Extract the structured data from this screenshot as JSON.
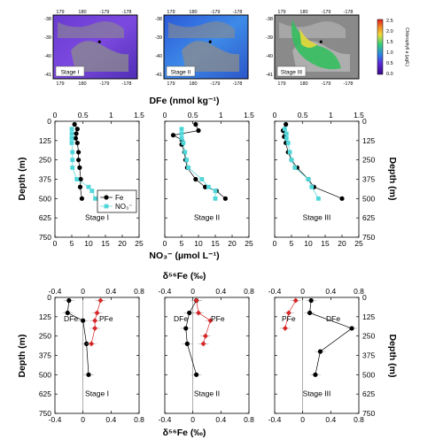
{
  "figure": {
    "map_lat_labels": [
      "-38",
      "-39",
      "-40",
      "-41"
    ],
    "map_lon_labels": [
      "179",
      "180",
      "-179",
      "-178"
    ],
    "colorbar_title": "Chlorophyll a (µg/L)",
    "colorbar_ticks": [
      "2.5",
      "2.0",
      "1.5",
      "1.0",
      "0.5",
      "0.0"
    ],
    "map_panels": [
      {
        "label": "Stage I"
      },
      {
        "label": "Stage II"
      },
      {
        "label": "Stage III"
      }
    ],
    "middle_top_title": "DFe (nmol kg⁻¹)",
    "middle_bottom_title": "NO₃⁻ (µmol L⁻¹)",
    "depth_label": "Depth (m)",
    "delta_title": "δ⁵⁶Fe (‰)"
  },
  "chart_data": [
    {
      "type": "scatter",
      "panel": "middle",
      "axes": [
        {
          "stage": "Stage I",
          "x_top": {
            "range": [
              0,
              1.5
            ],
            "ticks": [
              "0",
              "0.5",
              "1",
              "1.5"
            ]
          },
          "x_bottom": {
            "range": [
              0,
              25
            ],
            "ticks": [
              "0",
              "5",
              "10",
              "15",
              "20",
              "25"
            ]
          },
          "y": {
            "range": [
              0,
              750
            ],
            "reversed": true,
            "ticks": [
              "0",
              "125",
              "250",
              "375",
              "500",
              "625",
              "750"
            ]
          },
          "series": [
            {
              "name": "Fe",
              "x_axis": "top",
              "points": [
                [
                  0.35,
                  20
                ],
                [
                  0.4,
                  50
                ],
                [
                  0.38,
                  80
                ],
                [
                  0.37,
                  110
                ],
                [
                  0.4,
                  140
                ],
                [
                  0.42,
                  200
                ],
                [
                  0.42,
                  250
                ],
                [
                  0.44,
                  300
                ],
                [
                  0.46,
                  375
                ],
                [
                  0.45,
                  425
                ],
                [
                  0.48,
                  500
                ]
              ]
            },
            {
              "name": "NO₃⁻",
              "x_axis": "bottom",
              "points": [
                [
                  5,
                  50
                ],
                [
                  5,
                  80
                ],
                [
                  5,
                  110
                ],
                [
                  5,
                  140
                ],
                [
                  5.2,
                  200
                ],
                [
                  5.2,
                  250
                ],
                [
                  5.2,
                  300
                ],
                [
                  6.5,
                  375
                ],
                [
                  10,
                  425
                ],
                [
                  11,
                  450
                ],
                [
                  12,
                  500
                ]
              ]
            }
          ]
        },
        {
          "stage": "Stage II",
          "x_top": {
            "range": [
              0,
              1.5
            ],
            "ticks": [
              "0",
              "0.5",
              "1",
              "1.5"
            ]
          },
          "x_bottom": {
            "range": [
              0,
              25
            ],
            "ticks": [
              "0",
              "5",
              "10",
              "15",
              "20",
              "25"
            ]
          },
          "y": {
            "range": [
              0,
              750
            ],
            "reversed": true,
            "ticks": [
              "0",
              "125",
              "250",
              "375",
              "500",
              "625",
              "750"
            ]
          },
          "series": [
            {
              "name": "Fe",
              "x_axis": "top",
              "points": [
                [
                  0.55,
                  20
                ],
                [
                  0.6,
                  60
                ],
                [
                  0.15,
                  90
                ],
                [
                  0.3,
                  120
                ],
                [
                  0.3,
                  150
                ],
                [
                  0.35,
                  200
                ],
                [
                  0.37,
                  250
                ],
                [
                  0.4,
                  300
                ],
                [
                  0.55,
                  375
                ],
                [
                  0.72,
                  425
                ],
                [
                  0.92,
                  450
                ],
                [
                  1.08,
                  500
                ]
              ]
            },
            {
              "name": "NO₃⁻",
              "x_axis": "bottom",
              "points": [
                [
                  5,
                  50
                ],
                [
                  5,
                  80
                ],
                [
                  5,
                  110
                ],
                [
                  5.5,
                  140
                ],
                [
                  6,
                  200
                ],
                [
                  6.5,
                  250
                ],
                [
                  7,
                  300
                ],
                [
                  11,
                  375
                ],
                [
                  13,
                  425
                ],
                [
                  15,
                  450
                ],
                [
                  15,
                  500
                ]
              ]
            }
          ]
        },
        {
          "stage": "Stage III",
          "x_top": {
            "range": [
              0,
              1.5
            ],
            "ticks": [
              "0",
              "0.5",
              "1",
              "1.5"
            ]
          },
          "x_bottom": {
            "range": [
              0,
              25
            ],
            "ticks": [
              "0",
              "5",
              "10",
              "15",
              "20",
              "25"
            ]
          },
          "y": {
            "range": [
              0,
              750
            ],
            "reversed": true,
            "ticks": [
              "0",
              "125",
              "250",
              "375",
              "500",
              "625",
              "750"
            ]
          },
          "series": [
            {
              "name": "Fe",
              "x_axis": "top",
              "points": [
                [
                  0.2,
                  20
                ],
                [
                  0.15,
                  60
                ],
                [
                  0.17,
                  100
                ],
                [
                  0.2,
                  140
                ],
                [
                  0.24,
                  200
                ],
                [
                  0.3,
                  250
                ],
                [
                  0.4,
                  300
                ],
                [
                  0.6,
                  375
                ],
                [
                  0.7,
                  425
                ],
                [
                  1.2,
                  500
                ]
              ]
            },
            {
              "name": "NO₃⁻",
              "x_axis": "bottom",
              "points": [
                [
                  3,
                  50
                ],
                [
                  3.5,
                  80
                ],
                [
                  3.5,
                  110
                ],
                [
                  4,
                  140
                ],
                [
                  4.5,
                  200
                ],
                [
                  5,
                  250
                ],
                [
                  6,
                  300
                ],
                [
                  10,
                  375
                ],
                [
                  11,
                  425
                ],
                [
                  13,
                  500
                ]
              ]
            }
          ]
        }
      ],
      "legend": {
        "position": "middle of first panel",
        "entries": [
          "Fe",
          "NO₃⁻"
        ]
      }
    },
    {
      "type": "scatter",
      "panel": "bottom",
      "axes": [
        {
          "stage": "Stage I",
          "x": {
            "range": [
              -0.4,
              0.8
            ],
            "ticks": [
              "-0.4",
              "0",
              "0.4",
              "0.8"
            ]
          },
          "y": {
            "range": [
              0,
              750
            ],
            "reversed": true,
            "ticks": [
              "0",
              "125",
              "250",
              "375",
              "500",
              "625",
              "750"
            ]
          },
          "annotations": [
            "DFe",
            "PFe"
          ],
          "series": [
            {
              "name": "DFe",
              "color": "#000000",
              "points": [
                [
                  -0.2,
                  20
                ],
                [
                  -0.22,
                  100
                ],
                [
                  0,
                  150
                ],
                [
                  0.05,
                  300
                ],
                [
                  0.08,
                  500
                ]
              ]
            },
            {
              "name": "PFe",
              "color": "#d62728",
              "points": [
                [
                  0.25,
                  20
                ],
                [
                  0.2,
                  100
                ],
                [
                  0.17,
                  150
                ],
                [
                  0.17,
                  200
                ],
                [
                  0.12,
                  300
                ]
              ]
            }
          ]
        },
        {
          "stage": "Stage II",
          "x": {
            "range": [
              -0.4,
              0.8
            ],
            "ticks": [
              "-0.4",
              "0",
              "0.4",
              "0.8"
            ]
          },
          "y": {
            "range": [
              0,
              750
            ],
            "reversed": true,
            "ticks": [
              "0",
              "125",
              "250",
              "375",
              "500",
              "625",
              "750"
            ]
          },
          "annotations": [
            "DFe",
            "PFe"
          ],
          "series": [
            {
              "name": "DFe",
              "color": "#000000",
              "points": [
                [
                  0.05,
                  20
                ],
                [
                  -0.05,
                  100
                ],
                [
                  -0.1,
                  200
                ],
                [
                  -0.08,
                  300
                ],
                [
                  0.05,
                  500
                ]
              ]
            },
            {
              "name": "PFe",
              "color": "#d62728",
              "points": [
                [
                  0.05,
                  20
                ],
                [
                  0.08,
                  100
                ],
                [
                  0.25,
                  150
                ],
                [
                  0.18,
                  250
                ],
                [
                  0.15,
                  300
                ]
              ]
            }
          ]
        },
        {
          "stage": "Stage III",
          "x": {
            "range": [
              -0.4,
              0.8
            ],
            "ticks": [
              "-0.4",
              "0",
              "0.4",
              "0.8"
            ]
          },
          "y": {
            "range": [
              0,
              750
            ],
            "reversed": true,
            "ticks": [
              "0",
              "125",
              "250",
              "375",
              "500",
              "625",
              "750"
            ]
          },
          "annotations": [
            "PFe",
            "DFe"
          ],
          "series": [
            {
              "name": "PFe",
              "color": "#d62728",
              "points": [
                [
                  -0.1,
                  20
                ],
                [
                  -0.2,
                  100
                ],
                [
                  -0.25,
                  200
                ]
              ]
            },
            {
              "name": "DFe",
              "color": "#000000",
              "points": [
                [
                  0.12,
                  20
                ],
                [
                  0.1,
                  100
                ],
                [
                  0.7,
                  200
                ],
                [
                  0.25,
                  350
                ],
                [
                  0.18,
                  500
                ]
              ]
            }
          ]
        }
      ]
    }
  ]
}
